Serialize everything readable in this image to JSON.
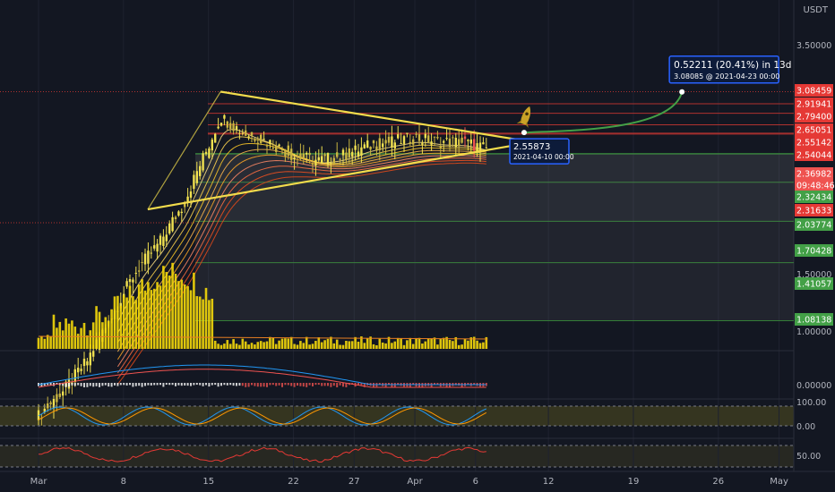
{
  "currency": "USDT",
  "colors": {
    "background": "#131722",
    "candle": "#f0e050",
    "volume": "#f5d90a",
    "trendline": "#f2dc4c",
    "projection_arrow": "#43a047",
    "resistance": "#e53935",
    "support": "#43a047",
    "price_tag": "#ef5350",
    "callout_border": "#2962ff",
    "callout_fill": "#0d1b3a",
    "rocket": "#c9a227"
  },
  "chart_data": {
    "type": "line",
    "title": "",
    "xlabel": "",
    "ylabel": "",
    "y_scale": "log",
    "x_tick_labels": [
      "Mar",
      "8",
      "15",
      "22",
      "27",
      "Apr",
      "6",
      "12",
      "19",
      "26",
      "May"
    ],
    "y_tick_labels": [
      "3.50000",
      "1.50000",
      "1.00000"
    ],
    "indicator_tick_labels": {
      "macd": [
        "0.00000"
      ],
      "stochastic": [
        "100.00",
        "0.00"
      ],
      "rsi": [
        "50.00"
      ]
    },
    "current_price": {
      "price": "2.36982",
      "countdown": "09:48:46"
    },
    "resistance_levels": [
      "3.08459",
      "2.91941",
      "2.79400",
      "2.65051",
      "2.55142",
      "2.54044"
    ],
    "support_levels": [
      "2.32434",
      "2.03774",
      "1.70428",
      "1.41057",
      "1.08138"
    ],
    "other_levels": [
      "2.31633"
    ],
    "annotations": {
      "projection_callout": {
        "line1": "0.52211 (20.41%) in 13d",
        "line2": "3.08085 @ 2021-04-23  00:00"
      },
      "breakout_callout": {
        "line1": "2.55873",
        "line2": "2021-04-10 00:00"
      }
    },
    "price_series_approx": {
      "dates": [
        "2021-03-01",
        "2021-03-03",
        "2021-03-05",
        "2021-03-07",
        "2021-03-09",
        "2021-03-11",
        "2021-03-13",
        "2021-03-15",
        "2021-03-16",
        "2021-03-18",
        "2021-03-20",
        "2021-03-22",
        "2021-03-24",
        "2021-03-26",
        "2021-03-28",
        "2021-03-30",
        "2021-04-01",
        "2021-04-03",
        "2021-04-05",
        "2021-04-07"
      ],
      "close": [
        0.7,
        0.78,
        0.9,
        1.1,
        1.35,
        1.55,
        1.85,
        2.4,
        2.75,
        2.55,
        2.45,
        2.3,
        2.25,
        2.3,
        2.4,
        2.45,
        2.5,
        2.45,
        2.45,
        2.37
      ]
    }
  }
}
